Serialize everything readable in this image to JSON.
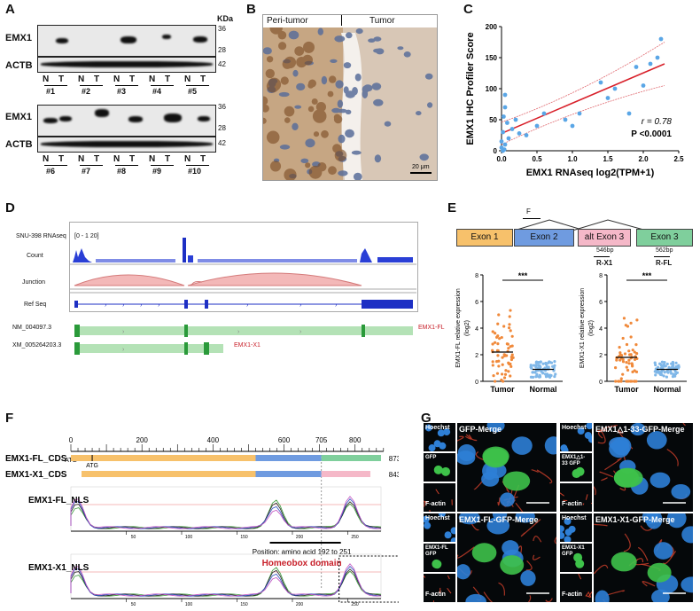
{
  "panels": [
    "A",
    "B",
    "C",
    "D",
    "E",
    "F",
    "G"
  ],
  "A": {
    "kda": "KDa",
    "markers_top": [
      "36",
      "28",
      "42"
    ],
    "markers_bottom": [
      "36",
      "28",
      "42"
    ],
    "proteins": [
      "EMX1",
      "ACTB"
    ],
    "lanes": [
      "N",
      "T"
    ],
    "groups_top": [
      "#1",
      "#2",
      "#3",
      "#4",
      "#5"
    ],
    "groups_bottom": [
      "#6",
      "#7",
      "#8",
      "#9",
      "#10"
    ]
  },
  "B": {
    "left": "Peri-tumor",
    "right": "Tumor",
    "scale": "20 μm"
  },
  "C": {
    "chart_data": {
      "type": "scatter",
      "xlabel": "EMX1 RNAseq log2(TPM+1)",
      "ylabel": "EMX1 IHC Profiler Score",
      "xlim": [
        0,
        2.5
      ],
      "ylim": [
        0,
        200
      ],
      "xticks": [
        "0.0",
        "0.5",
        "1.0",
        "1.5",
        "2.0",
        "2.5"
      ],
      "yticks": [
        "0",
        "50",
        "100",
        "150",
        "200"
      ],
      "points": [
        [
          0.0,
          5
        ],
        [
          0.0,
          15
        ],
        [
          0.02,
          30
        ],
        [
          0.03,
          55
        ],
        [
          0.05,
          90
        ],
        [
          0.05,
          70
        ],
        [
          0.08,
          45
        ],
        [
          0.1,
          20
        ],
        [
          0.05,
          10
        ],
        [
          0.15,
          35
        ],
        [
          0.2,
          50
        ],
        [
          0.25,
          28
        ],
        [
          0.35,
          25
        ],
        [
          0.5,
          40
        ],
        [
          0.6,
          60
        ],
        [
          0.9,
          50
        ],
        [
          1.0,
          40
        ],
        [
          1.1,
          60
        ],
        [
          1.4,
          110
        ],
        [
          1.5,
          85
        ],
        [
          1.6,
          100
        ],
        [
          1.8,
          60
        ],
        [
          1.9,
          135
        ],
        [
          2.1,
          140
        ],
        [
          2.2,
          150
        ],
        [
          2.25,
          180
        ],
        [
          2.0,
          105
        ],
        [
          0.02,
          0
        ],
        [
          0.04,
          2
        ]
      ],
      "fit": {
        "x": [
          0,
          2.3
        ],
        "y": [
          28,
          140
        ]
      },
      "r_text": "r = 0.78",
      "p_text": "P <0.0001"
    }
  },
  "D": {
    "track": "SNU-398 RNAseq",
    "range": "[0 - 1 20]",
    "rows": [
      "Count",
      "Junction",
      "Ref Seq"
    ],
    "t1": "NM_004097.3",
    "t2": "XM_005264203.3",
    "t1_label": "EMX1-FL",
    "t2_label": "EMX1-X1"
  },
  "E": {
    "exons": [
      "Exon 1",
      "Exon 2",
      "alt Exon 3",
      "Exon 3"
    ],
    "primers": [
      "F",
      "R-X1",
      "R-FL"
    ],
    "sizes": [
      "546bp",
      "562bp"
    ],
    "sig": "***",
    "chart_data": [
      {
        "type": "scatter",
        "ylabel": "EMX1-FL relative expression (log2)",
        "categories": [
          "Tumor",
          "Normal"
        ],
        "ylim": [
          0,
          8
        ],
        "yticks": [
          "0",
          "2",
          "4",
          "6",
          "8"
        ],
        "means": [
          2.2,
          0.9
        ]
      },
      {
        "type": "scatter",
        "ylabel": "EMX1-X1 relative expression (log2)",
        "categories": [
          "Tumor",
          "Normal"
        ],
        "ylim": [
          0,
          8
        ],
        "yticks": [
          "0",
          "2",
          "4",
          "6",
          "8"
        ],
        "means": [
          1.8,
          0.9
        ]
      }
    ]
  },
  "F": {
    "ruler": [
      "0",
      "200",
      "400",
      "600",
      "705",
      "800"
    ],
    "atg": [
      "ATG",
      "ATG"
    ],
    "cds": [
      {
        "name": "EMX1-FL_CDS",
        "len": "873 bp"
      },
      {
        "name": "EMX1-X1_CDS",
        "len": "843 bp"
      }
    ],
    "nls": [
      "EMX1-FL_NLS",
      "EMX1-X1_NLS"
    ],
    "nls_ticks": [
      "50",
      "100",
      "150",
      "200",
      "250"
    ],
    "position": "Position: amino acid 192 to 251",
    "domain": "Homeobox domain"
  },
  "G": {
    "titles": [
      "GFP-Merge",
      "EMX1△1-33-GFP-Merge",
      "EMX1-FL-GFP-Merge",
      "EMX1-X1-GFP-Merge"
    ],
    "hoechst": "Hoechst",
    "factin": "F-actin",
    "gfp": [
      "GFP",
      "EMX1△1-33 GFP",
      "EMX1-FL GFP",
      "EMX1-X1 GFP"
    ]
  },
  "colors": {
    "orange": "#f7c16b",
    "blue": "#6f9be0",
    "pink": "#f5b8c8",
    "green": "#7fcf9c",
    "red": "#d8202a",
    "dotblue": "#5aa6e6"
  }
}
